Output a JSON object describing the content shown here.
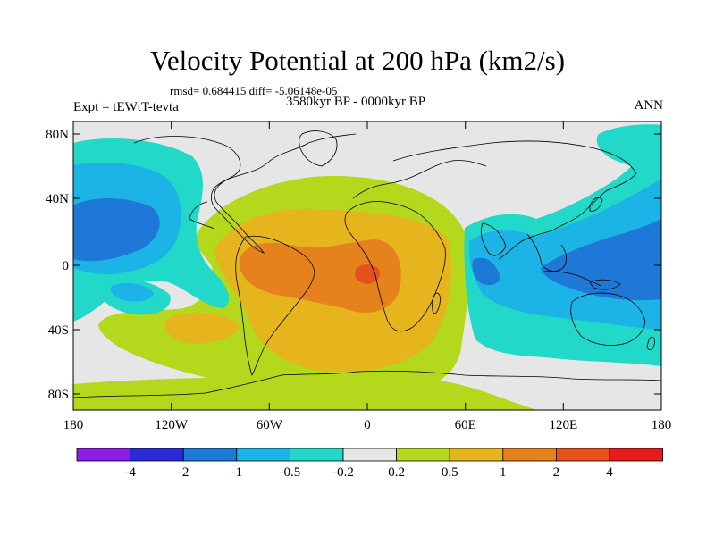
{
  "title": "Velocity Potential at 200 hPa (km2/s)",
  "stats": "rmsd= 0.684415 diff= -5.06148e-05",
  "experiment": "Expt = tEWtT-tevta",
  "period": "3580kyr BP - 0000kyr BP",
  "season": "ANN",
  "lat_ticks": [
    "80N",
    "40N",
    "0",
    "40S",
    "80S"
  ],
  "lon_ticks": [
    "180",
    "120W",
    "60W",
    "0",
    "60E",
    "120E",
    "180"
  ],
  "colorbar": {
    "labels": [
      "-4",
      "-2",
      "-1",
      "-0.5",
      "-0.2",
      "0.2",
      "0.5",
      "1",
      "2",
      "4"
    ],
    "colors": [
      "#8a1ee6",
      "#2a2ad6",
      "#1e78d8",
      "#1cb4e6",
      "#22d8c8",
      "#e6e6e6",
      "#b4d81c",
      "#e6b41c",
      "#e6821c",
      "#e6501c",
      "#e61c1c"
    ]
  },
  "palette": {
    "neg_strong": "#1e78d8",
    "neg_mid": "#1cb4e6",
    "neg_weak": "#22d8c8",
    "neutral": "#e6e6e6",
    "pos_weak": "#b4d81c",
    "pos_mid": "#e6b41c",
    "pos_strong": "#e6821c",
    "pos_max": "#e6501c",
    "coast": "#000000"
  }
}
